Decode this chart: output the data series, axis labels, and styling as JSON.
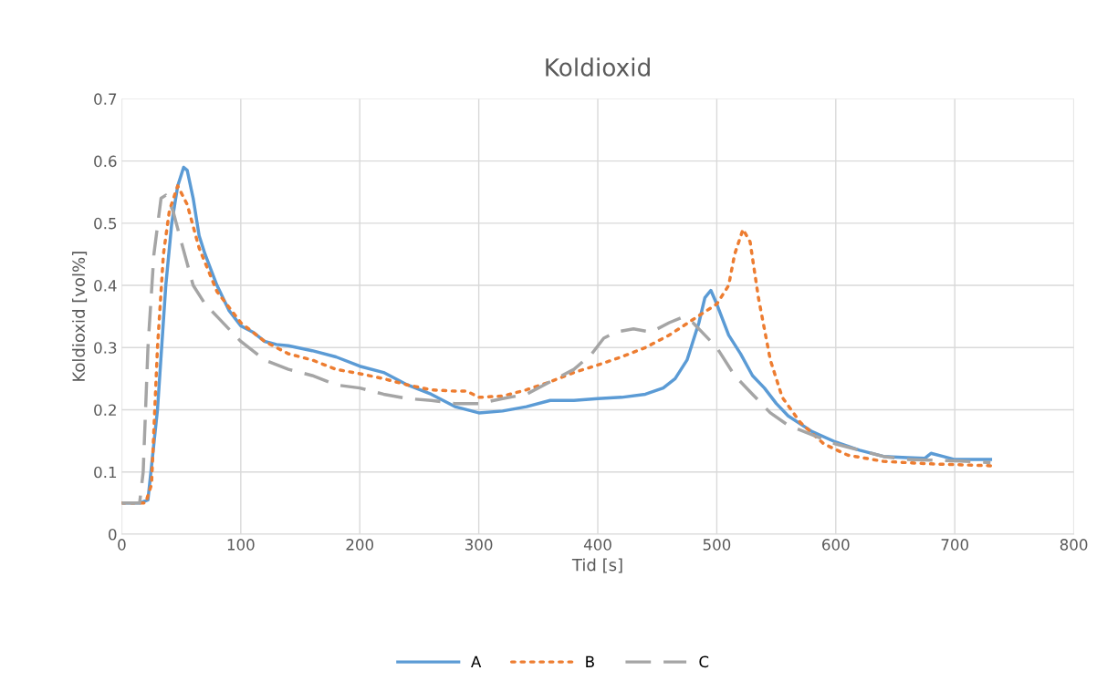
{
  "chart_data": {
    "type": "line",
    "title": "Koldioxid",
    "xlabel": "Tid [s]",
    "ylabel": "Koldioxid [vol%]",
    "xlim": [
      0,
      800
    ],
    "xticks": [
      0,
      100,
      200,
      300,
      400,
      500,
      600,
      700,
      800
    ],
    "ylim": [
      0,
      0.7
    ],
    "yticks": [
      0,
      0.1,
      0.2,
      0.3,
      0.4,
      0.5,
      0.6,
      0.7
    ],
    "grid": true,
    "legend": "bottom",
    "marker": "none",
    "series": [
      {
        "name": "A",
        "color": "#5b9bd5",
        "line_style": "solid",
        "x": [
          0,
          15,
          22,
          30,
          37,
          42,
          47,
          52,
          55,
          60,
          65,
          70,
          80,
          90,
          100,
          110,
          120,
          130,
          140,
          160,
          180,
          200,
          220,
          240,
          260,
          280,
          300,
          320,
          340,
          360,
          380,
          400,
          420,
          440,
          455,
          465,
          475,
          485,
          490,
          495,
          500,
          510,
          520,
          530,
          540,
          550,
          560,
          580,
          600,
          620,
          640,
          660,
          675,
          680,
          690,
          700,
          720,
          730
        ],
        "values": [
          0.05,
          0.05,
          0.055,
          0.2,
          0.4,
          0.5,
          0.56,
          0.59,
          0.585,
          0.54,
          0.48,
          0.45,
          0.4,
          0.36,
          0.335,
          0.325,
          0.31,
          0.305,
          0.303,
          0.295,
          0.285,
          0.27,
          0.26,
          0.24,
          0.225,
          0.205,
          0.195,
          0.198,
          0.205,
          0.215,
          0.215,
          0.218,
          0.22,
          0.225,
          0.235,
          0.25,
          0.28,
          0.34,
          0.38,
          0.392,
          0.37,
          0.32,
          0.29,
          0.255,
          0.235,
          0.21,
          0.19,
          0.165,
          0.148,
          0.135,
          0.125,
          0.123,
          0.122,
          0.13,
          0.125,
          0.12,
          0.12,
          0.12
        ]
      },
      {
        "name": "B",
        "color": "#ed7d31",
        "line_style": "dotted",
        "x": [
          0,
          20,
          25,
          30,
          35,
          40,
          47,
          55,
          65,
          80,
          100,
          120,
          140,
          160,
          180,
          200,
          220,
          240,
          260,
          280,
          290,
          300,
          320,
          340,
          360,
          380,
          400,
          420,
          440,
          460,
          480,
          500,
          510,
          515,
          522,
          528,
          535,
          545,
          555,
          570,
          590,
          610,
          640,
          680,
          730
        ],
        "values": [
          0.05,
          0.05,
          0.08,
          0.3,
          0.45,
          0.52,
          0.56,
          0.53,
          0.46,
          0.39,
          0.34,
          0.31,
          0.29,
          0.28,
          0.265,
          0.258,
          0.25,
          0.24,
          0.232,
          0.23,
          0.23,
          0.22,
          0.222,
          0.232,
          0.245,
          0.26,
          0.272,
          0.285,
          0.3,
          0.32,
          0.345,
          0.37,
          0.4,
          0.45,
          0.49,
          0.47,
          0.38,
          0.28,
          0.22,
          0.18,
          0.145,
          0.127,
          0.117,
          0.113,
          0.11
        ]
      },
      {
        "name": "C",
        "color": "#a5a5a5",
        "line_style": "dashed",
        "x": [
          0,
          15,
          18,
          22,
          27,
          33,
          37,
          43,
          50,
          60,
          70,
          80,
          100,
          120,
          140,
          160,
          180,
          200,
          220,
          240,
          260,
          280,
          300,
          320,
          340,
          360,
          380,
          395,
          405,
          415,
          430,
          445,
          460,
          470,
          480,
          490,
          500,
          515,
          530,
          545,
          560,
          580,
          600,
          620,
          640,
          660,
          700,
          730
        ],
        "values": [
          0.05,
          0.05,
          0.1,
          0.3,
          0.45,
          0.54,
          0.545,
          0.52,
          0.47,
          0.4,
          0.37,
          0.35,
          0.31,
          0.28,
          0.265,
          0.255,
          0.24,
          0.235,
          0.225,
          0.218,
          0.215,
          0.21,
          0.21,
          0.218,
          0.225,
          0.245,
          0.265,
          0.29,
          0.315,
          0.325,
          0.33,
          0.325,
          0.34,
          0.348,
          0.34,
          0.32,
          0.3,
          0.255,
          0.225,
          0.195,
          0.175,
          0.16,
          0.145,
          0.135,
          0.125,
          0.12,
          0.118,
          0.115
        ]
      }
    ]
  }
}
